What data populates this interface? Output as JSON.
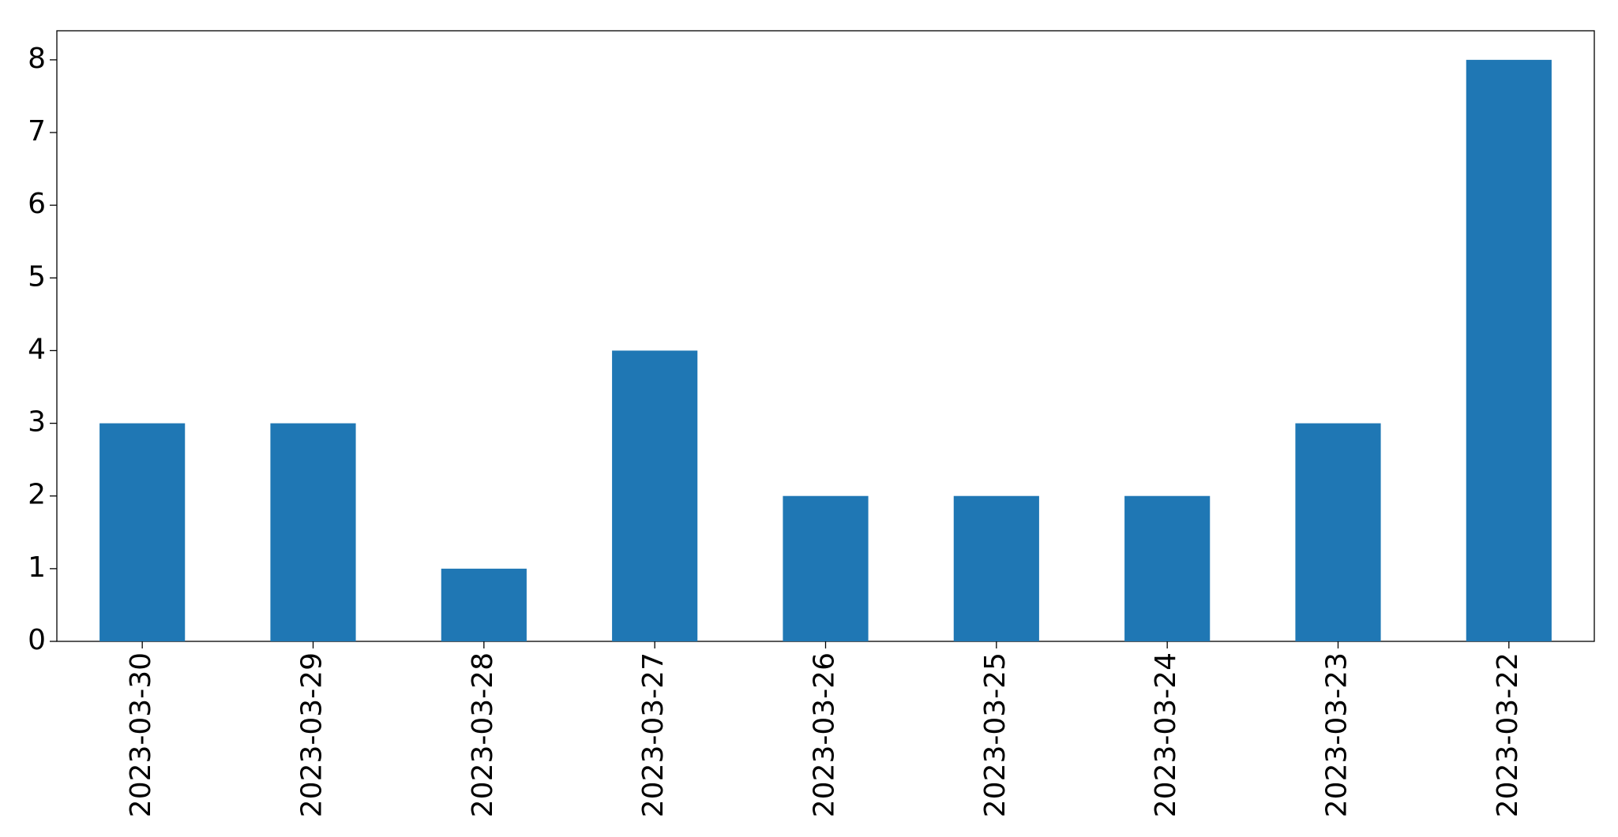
{
  "chart_data": {
    "type": "bar",
    "categories": [
      "2023-03-30",
      "2023-03-29",
      "2023-03-28",
      "2023-03-27",
      "2023-03-26",
      "2023-03-25",
      "2023-03-24",
      "2023-03-23",
      "2023-03-22"
    ],
    "values": [
      3,
      3,
      1,
      4,
      2,
      2,
      2,
      3,
      8
    ],
    "color": "#1f77b4",
    "ylim": [
      0,
      8.4
    ],
    "yticks": [
      0,
      1,
      2,
      3,
      4,
      5,
      6,
      7,
      8
    ],
    "grid": false
  }
}
